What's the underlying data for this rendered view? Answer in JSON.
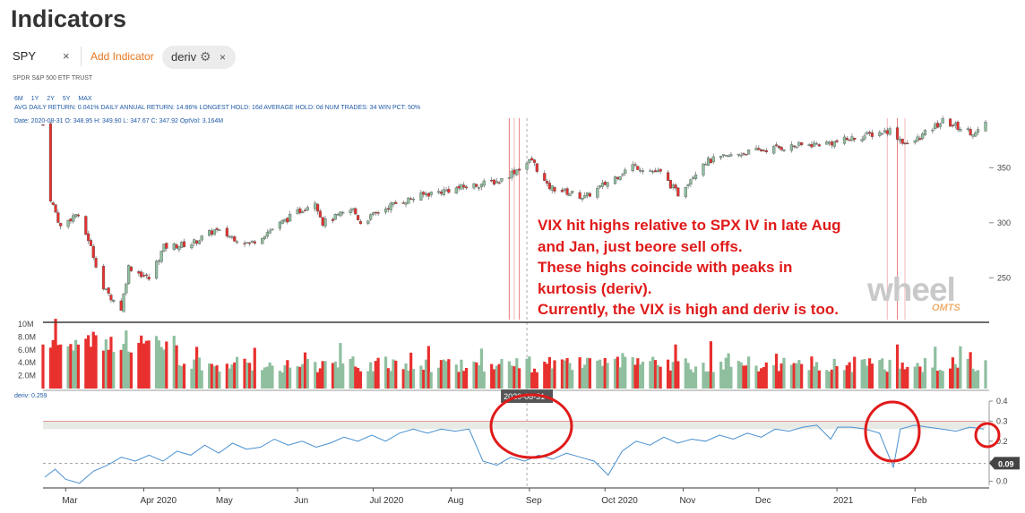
{
  "page": {
    "title": "Indicators",
    "ticker": "SPY",
    "ticker_remove": "×",
    "add_indicator": "Add Indicator",
    "indicator_chip": {
      "label": "deriv",
      "remove": "×",
      "icon": "gear-icon"
    },
    "ticker_name": "SPDR S&P 500 ETF TRUST",
    "ranges": [
      "6M",
      "1Y",
      "2Y",
      "5Y",
      "MAX"
    ],
    "stats_line": "AVG DAILY RETURN: 0.041%  DAILY ANNUAL RETURN: 14.86%  LONGEST HOLD: 16d  AVERAGE HOLD: 0d  NUM TRADES: 34  WIN PCT: 50%",
    "date_line": "Date: 2020-08-31  O: 348.95  H: 349.90  L: 347.67  C: 347.92  OptVol: 3.164M",
    "deriv_value_label": "deriv: 0.259",
    "crosshair_date": "2020-08-31",
    "deriv_current_badge": "0.09",
    "annotation_lines": [
      "VIX hit highs relative to SPX IV in late Aug",
      "and Jan, just beore sell offs.",
      "These highs coincide with peaks in",
      "kurtosis (deriv).",
      "Currently, the VIX is high and deriv is too."
    ],
    "logo_text": "wheel",
    "logo_sub": "OMTS",
    "colors": {
      "up": "#8fbf9f",
      "down": "#e8302e",
      "line": "#4a90d0",
      "annot": "#e01a1a",
      "accent": "#e8761e"
    }
  },
  "chart_data": [
    {
      "type": "candlestick",
      "title": "SPY",
      "x_labels": [
        "Mar",
        "Apr 2020",
        "May",
        "Jun",
        "Jul 2020",
        "Aug",
        "Sep",
        "Oct 2020",
        "Nov",
        "Dec",
        "2021",
        "Feb"
      ],
      "ylim": [
        212,
        395
      ],
      "y_ticks": [
        250,
        300,
        350
      ],
      "close_path": [
        [
          "2020-02-24",
          322
        ],
        [
          "2020-02-28",
          296
        ],
        [
          "2020-03-05",
          308
        ],
        [
          "2020-03-10",
          285
        ],
        [
          "2020-03-16",
          240
        ],
        [
          "2020-03-23",
          222
        ],
        [
          "2020-03-26",
          260
        ],
        [
          "2020-04-03",
          249
        ],
        [
          "2020-04-09",
          278
        ],
        [
          "2020-04-20",
          281
        ],
        [
          "2020-04-29",
          293
        ],
        [
          "2020-05-13",
          281
        ],
        [
          "2020-05-27",
          302
        ],
        [
          "2020-06-08",
          320
        ],
        [
          "2020-06-11",
          300
        ],
        [
          "2020-06-23",
          312
        ],
        [
          "2020-06-26",
          300
        ],
        [
          "2020-07-08",
          316
        ],
        [
          "2020-07-22",
          326
        ],
        [
          "2020-08-05",
          332
        ],
        [
          "2020-08-20",
          338
        ],
        [
          "2020-09-02",
          357
        ],
        [
          "2020-09-08",
          333
        ],
        [
          "2020-09-23",
          323
        ],
        [
          "2020-10-12",
          352
        ],
        [
          "2020-10-23",
          345
        ],
        [
          "2020-10-30",
          326
        ],
        [
          "2020-11-09",
          355
        ],
        [
          "2020-11-24",
          363
        ],
        [
          "2020-12-08",
          368
        ],
        [
          "2020-12-31",
          373
        ],
        [
          "2021-01-22",
          384
        ],
        [
          "2021-01-29",
          370
        ],
        [
          "2021-02-12",
          392
        ],
        [
          "2021-02-25",
          381
        ],
        [
          "2021-03-01",
          389
        ]
      ],
      "volume": {
        "ylim": [
          0,
          10000000
        ],
        "y_ticks": [
          "2.0M",
          "4.0M",
          "6.0M",
          "8.0M",
          "10M"
        ]
      },
      "highlight_dates": [
        "2020-08-24",
        "2020-08-26",
        "2020-08-28",
        "2021-01-21",
        "2021-01-25",
        "2021-01-28"
      ]
    },
    {
      "type": "line",
      "series": [
        {
          "name": "deriv",
          "values": [
            [
              0,
              0.02
            ],
            [
              3,
              0.06
            ],
            [
              6,
              0.01
            ],
            [
              10,
              -0.01
            ],
            [
              14,
              0.05
            ],
            [
              18,
              0.08
            ],
            [
              22,
              0.12
            ],
            [
              26,
              0.1
            ],
            [
              30,
              0.13
            ],
            [
              34,
              0.1
            ],
            [
              38,
              0.15
            ],
            [
              42,
              0.13
            ],
            [
              46,
              0.18
            ],
            [
              50,
              0.14
            ],
            [
              54,
              0.19
            ],
            [
              58,
              0.16
            ],
            [
              62,
              0.17
            ],
            [
              66,
              0.21
            ],
            [
              70,
              0.18
            ],
            [
              74,
              0.2
            ],
            [
              78,
              0.17
            ],
            [
              82,
              0.19
            ],
            [
              86,
              0.22
            ],
            [
              90,
              0.2
            ],
            [
              94,
              0.23
            ],
            [
              98,
              0.2
            ],
            [
              102,
              0.24
            ],
            [
              106,
              0.26
            ],
            [
              110,
              0.24
            ],
            [
              114,
              0.26
            ],
            [
              118,
              0.25
            ],
            [
              122,
              0.26
            ],
            [
              126,
              0.1
            ],
            [
              130,
              0.08
            ],
            [
              134,
              0.12
            ],
            [
              138,
              0.1
            ],
            [
              142,
              0.13
            ],
            [
              146,
              0.11
            ],
            [
              150,
              0.14
            ],
            [
              154,
              0.12
            ],
            [
              158,
              0.1
            ],
            [
              162,
              0.03
            ],
            [
              166,
              0.15
            ],
            [
              170,
              0.2
            ],
            [
              174,
              0.18
            ],
            [
              178,
              0.22
            ],
            [
              182,
              0.19
            ],
            [
              186,
              0.21
            ],
            [
              190,
              0.2
            ],
            [
              194,
              0.23
            ],
            [
              198,
              0.21
            ],
            [
              202,
              0.24
            ],
            [
              206,
              0.22
            ],
            [
              210,
              0.26
            ],
            [
              214,
              0.25
            ],
            [
              218,
              0.27
            ],
            [
              222,
              0.28
            ],
            [
              226,
              0.21
            ],
            [
              228,
              0.27
            ],
            [
              232,
              0.27
            ],
            [
              236,
              0.26
            ],
            [
              240,
              0.24
            ],
            [
              244,
              0.07
            ],
            [
              246,
              0.26
            ],
            [
              250,
              0.28
            ],
            [
              254,
              0.27
            ],
            [
              258,
              0.26
            ],
            [
              262,
              0.25
            ],
            [
              266,
              0.27
            ],
            [
              270,
              0.26
            ]
          ]
        }
      ],
      "ylim": [
        -0.02,
        0.4
      ],
      "y_ticks": [
        0.0,
        0.1,
        0.2,
        0.3,
        0.4
      ],
      "reference_lines": [
        0.3,
        0.26,
        0.09
      ]
    }
  ]
}
